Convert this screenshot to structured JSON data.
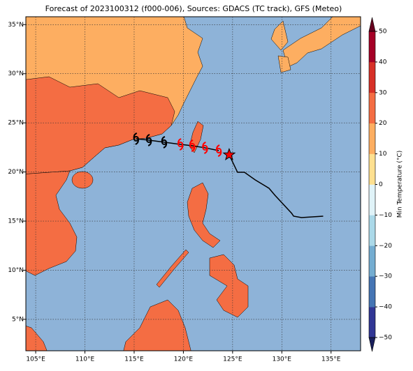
{
  "map": {
    "title": "Forecast of 2023100312 (f000-006), Sources: GDACS (TC track), GFS (Meteo)",
    "xlim": [
      104,
      138
    ],
    "ylim": [
      1.8,
      35.8
    ],
    "xticks": [
      {
        "value": 105,
        "label": "105°E"
      },
      {
        "value": 110,
        "label": "110°E"
      },
      {
        "value": 115,
        "label": "115°E"
      },
      {
        "value": 120,
        "label": "120°E"
      },
      {
        "value": 125,
        "label": "125°E"
      },
      {
        "value": 130,
        "label": "130°E"
      },
      {
        "value": 135,
        "label": "135°E"
      }
    ],
    "yticks": [
      {
        "value": 5,
        "label": "5°N"
      },
      {
        "value": 10,
        "label": "10°N"
      },
      {
        "value": 15,
        "label": "15°N"
      },
      {
        "value": 20,
        "label": "20°N"
      },
      {
        "value": 25,
        "label": "25°N"
      },
      {
        "value": 30,
        "label": "30°N"
      },
      {
        "value": 35,
        "label": "35°N"
      }
    ],
    "ocean_color": "#8eb3d8",
    "track": {
      "color": "#000000",
      "lon": [
        124.65,
        125.5,
        126.2,
        127.3,
        128.7,
        129.3,
        131.0,
        131.2,
        132.0,
        134.2
      ],
      "lat": [
        21.75,
        19.97,
        19.97,
        19.19,
        18.34,
        17.63,
        15.79,
        15.5,
        15.36,
        15.5
      ]
    },
    "position": {
      "lon": 124.65,
      "lat": 21.75,
      "color": "#ff0000"
    },
    "forecast": {
      "lon": [
        123.6,
        122.2,
        120.9,
        119.7,
        118.05,
        116.5,
        115.2
      ],
      "lat": [
        22.17,
        22.46,
        22.67,
        22.81,
        23.03,
        23.24,
        23.38
      ],
      "colors": [
        "#ff0000",
        "#ff0000",
        "#ff0000",
        "#ff0000",
        "#000000",
        "#000000",
        "#000000"
      ]
    },
    "colorbar": {
      "label": "Min Temperature (°C)",
      "lim": [
        -50,
        50
      ],
      "ticks": [
        {
          "value": -50,
          "label": "−50"
        },
        {
          "value": -40,
          "label": "−40"
        },
        {
          "value": -30,
          "label": "−30"
        },
        {
          "value": -20,
          "label": "−20"
        },
        {
          "value": -10,
          "label": "−10"
        },
        0,
        10,
        20,
        30,
        40,
        50
      ],
      "colors": [
        "#313695",
        "#4575b4",
        "#74add1",
        "#abd9e9",
        "#e0f3f8",
        "#fee090",
        "#fdae61",
        "#f46d43",
        "#d73027",
        "#a50026"
      ],
      "under_color": "#1a1f5c",
      "over_color": "#67001f"
    }
  }
}
